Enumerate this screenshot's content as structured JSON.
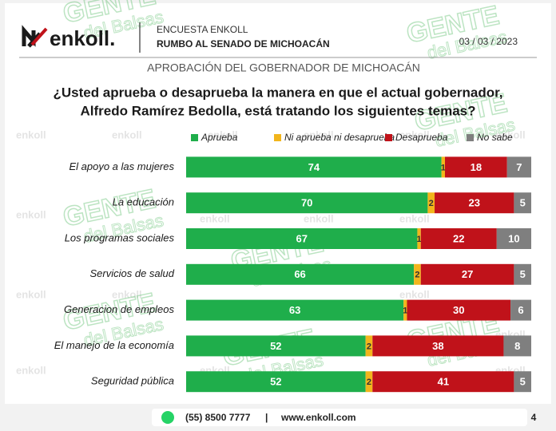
{
  "header": {
    "logo": "enkoll.",
    "survey": "ENCUESTA ENKOLL",
    "topic": "RUMBO AL SENADO DE MICHOACÁN",
    "date": "03 / 03 / 2023"
  },
  "watermark": {
    "brand": "GENTE",
    "sub": "del Balsas",
    "background": "enkoll"
  },
  "chart_data": {
    "type": "stacked-bar-horizontal",
    "subtitle": "APROBACIÓN DEL GOBERNADOR DE MICHOACÁN",
    "title_lines": [
      "¿Usted aprueba o desaprueba la manera en que el actual gobernador,",
      "Alfredo Ramírez Bedolla, está tratando los siguientes temas?"
    ],
    "categories": [
      "El apoyo a las mujeres",
      "La educación",
      "Los programas sociales",
      "Servicios de salud",
      "Generacion de empleos",
      "El manejo de la economía",
      "Seguridad pública"
    ],
    "xlim": [
      0,
      100
    ],
    "series": [
      {
        "name": "Aprueba",
        "color": "#1fae4b",
        "label_color": "#ffffff",
        "values": [
          74,
          70,
          67,
          66,
          63,
          52,
          52
        ]
      },
      {
        "name": "Ni aprueba ni desaprueba",
        "color": "#f2b51c",
        "label_color": "#333333",
        "values": [
          1,
          2,
          1,
          2,
          1,
          2,
          2
        ]
      },
      {
        "name": "Desaprueba",
        "color": "#c0121a",
        "label_color": "#ffffff",
        "values": [
          18,
          23,
          22,
          27,
          30,
          38,
          41
        ]
      },
      {
        "name": "No sabe",
        "color": "#7f7f7f",
        "label_color": "#ffffff",
        "values": [
          7,
          5,
          10,
          5,
          6,
          8,
          5
        ]
      }
    ]
  },
  "footer": {
    "phone": "(55) 8500 7777",
    "separator": "|",
    "web": "www.enkoll.com",
    "page": "4"
  }
}
